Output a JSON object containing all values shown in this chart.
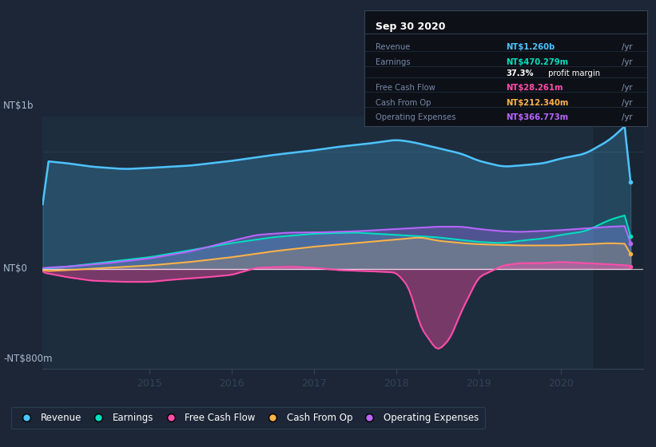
{
  "bg_color": "#1c2636",
  "plot_bg_color": "#1e2d3d",
  "dark_bg": "#16202e",
  "title_text": "Sep 30 2020",
  "ylabel_top": "NT$1b",
  "ylabel_bottom": "-NT$800m",
  "ylabel_mid": "NT$0",
  "x_ticks": [
    2015,
    2016,
    2017,
    2018,
    2019,
    2020
  ],
  "ylim": [
    -850,
    1300
  ],
  "xlim_start": 2013.7,
  "xlim_end": 2021.0,
  "colors": {
    "revenue": "#4dc3ff",
    "earnings": "#00e0c0",
    "free_cash_flow": "#ff4dab",
    "cash_from_op": "#ffb347",
    "operating_expenses": "#bb66ff"
  },
  "legend_items": [
    "Revenue",
    "Earnings",
    "Free Cash Flow",
    "Cash From Op",
    "Operating Expenses"
  ],
  "infobox": {
    "date": "Sep 30 2020",
    "revenue_color": "#4dc3ff",
    "revenue_val": "NT$1.260b",
    "earnings_color": "#00e0c0",
    "earnings_val": "NT$470.279m",
    "margin_val": "37.3%",
    "margin_text": " profit margin",
    "fcf_color": "#ff4dab",
    "fcf_val": "NT$28.261m",
    "cfop_color": "#ffb347",
    "cfop_val": "NT$212.340m",
    "opex_color": "#bb66ff",
    "opex_val": "NT$366.773m"
  }
}
